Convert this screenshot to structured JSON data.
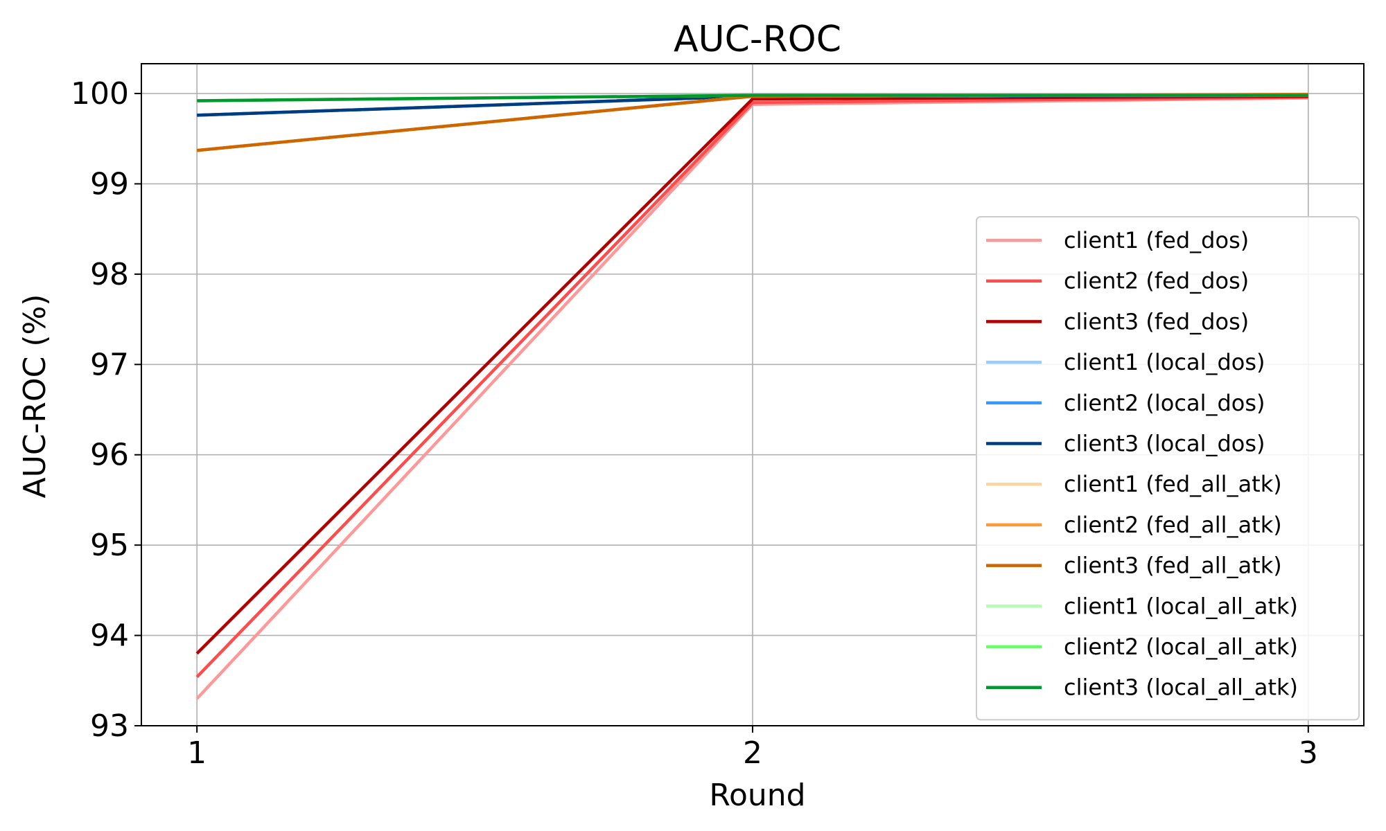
{
  "chart_data": {
    "type": "line",
    "title": "AUC-ROC",
    "xlabel": "Round",
    "ylabel": "AUC-ROC (%)",
    "x": [
      1,
      2,
      3
    ],
    "xticks": [
      "1",
      "2",
      "3"
    ],
    "xlim": [
      0.9,
      3.1
    ],
    "yticks": [
      "93",
      "94",
      "95",
      "96",
      "97",
      "98",
      "99",
      "100"
    ],
    "ylim": [
      93.0,
      100.33
    ],
    "grid": true,
    "legend_position": "center-right",
    "series": [
      {
        "name": "client1 (fed_dos)",
        "color": "#ff9999",
        "values": [
          93.3,
          99.88,
          99.95
        ]
      },
      {
        "name": "client2 (fed_dos)",
        "color": "#ff4d4d",
        "values": [
          93.54,
          99.9,
          99.96
        ]
      },
      {
        "name": "client3 (fed_dos)",
        "color": "#b30000",
        "values": [
          93.8,
          99.94,
          99.97
        ]
      },
      {
        "name": "client1 (local_dos)",
        "color": "#99ccff",
        "values": [
          99.76,
          99.97,
          99.98
        ]
      },
      {
        "name": "client2 (local_dos)",
        "color": "#3399ff",
        "values": [
          99.76,
          99.97,
          99.98
        ]
      },
      {
        "name": "client3 (local_dos)",
        "color": "#003d80",
        "values": [
          99.76,
          99.97,
          99.98
        ]
      },
      {
        "name": "client1 (fed_all_atk)",
        "color": "#ffd699",
        "values": [
          99.37,
          99.97,
          99.99
        ]
      },
      {
        "name": "client2 (fed_all_atk)",
        "color": "#ff9933",
        "values": [
          99.37,
          99.97,
          99.99
        ]
      },
      {
        "name": "client3 (fed_all_atk)",
        "color": "#cc6600",
        "values": [
          99.37,
          99.97,
          99.99
        ]
      },
      {
        "name": "client1 (local_all_atk)",
        "color": "#b3ffb3",
        "values": [
          99.92,
          99.98,
          99.98
        ]
      },
      {
        "name": "client2 (local_all_atk)",
        "color": "#66ff66",
        "values": [
          99.92,
          99.98,
          99.98
        ]
      },
      {
        "name": "client3 (local_all_atk)",
        "color": "#00992e",
        "values": [
          99.92,
          99.98,
          99.98
        ]
      }
    ]
  }
}
